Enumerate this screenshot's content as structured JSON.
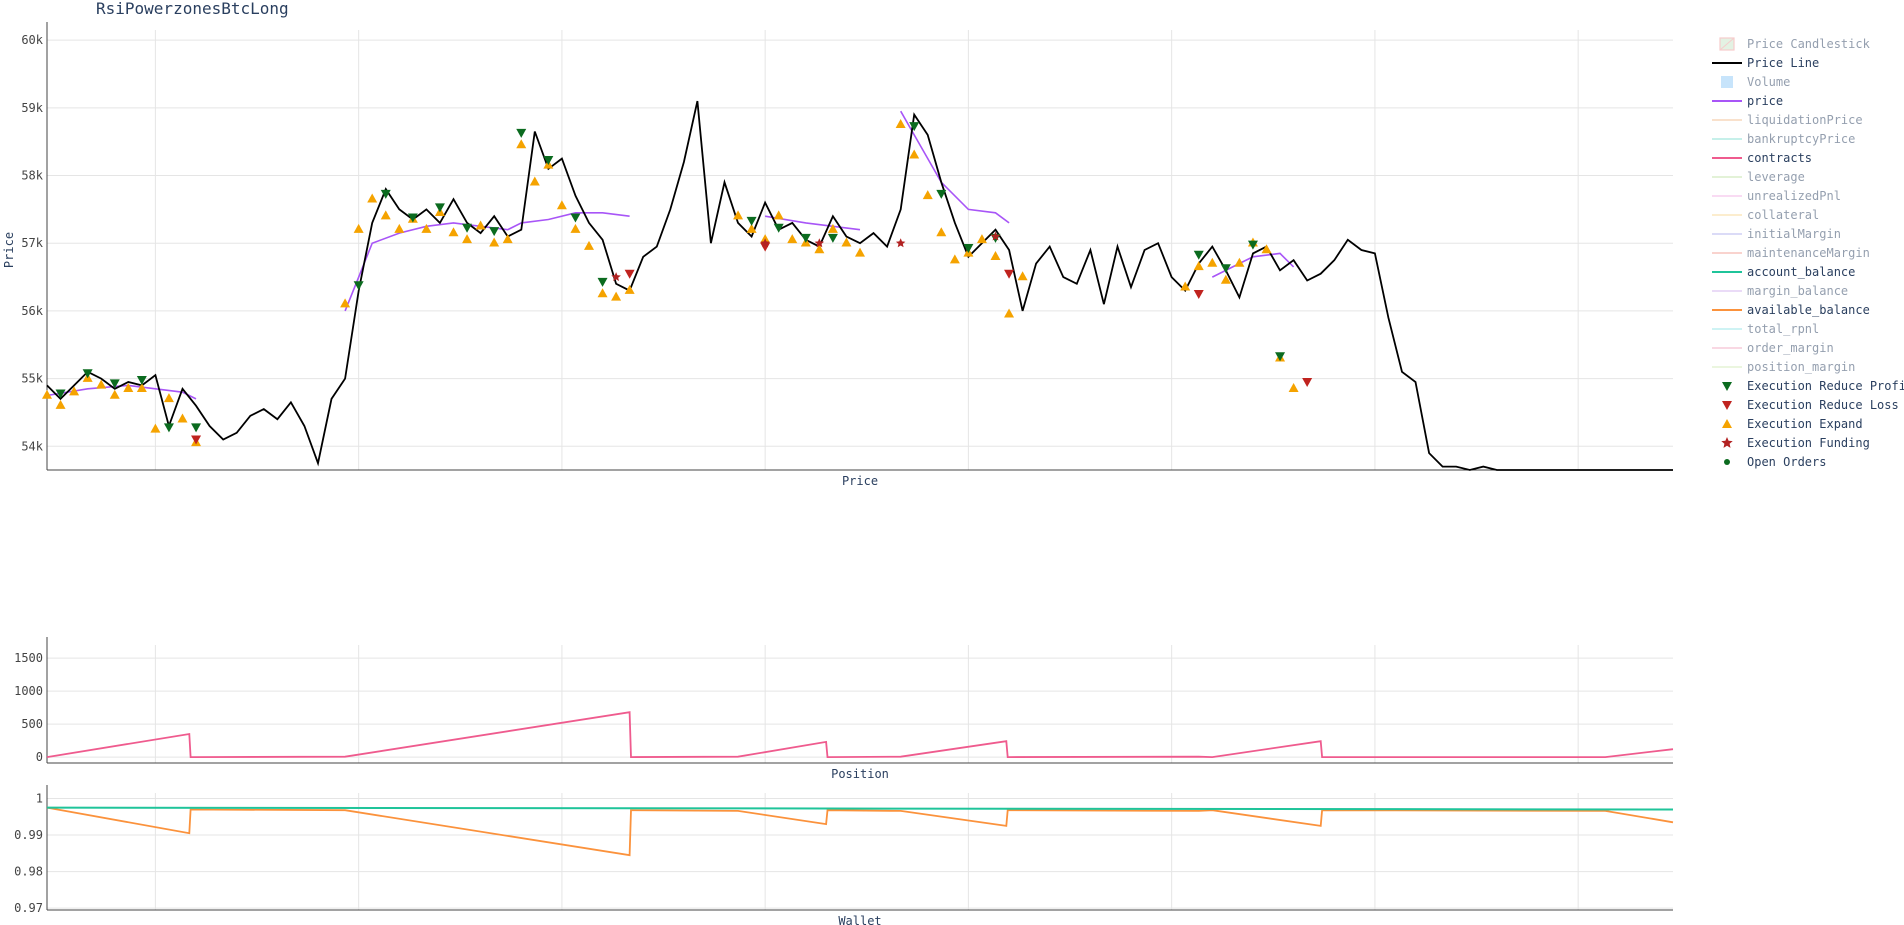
{
  "title": "RsiPowerzonesBtcLong",
  "colors": {
    "price_line": "#000000",
    "price_ma": "#a855f7",
    "contracts": "#ef5b8e",
    "account_balance": "#1fc49a",
    "available_balance": "#fb923c",
    "expand": "#f5a300",
    "reduce_profit": "#0b6b1f",
    "reduce_loss": "#c0231f",
    "funding": "#b22222",
    "open_orders": "#0b6b1f",
    "grid": "#e5e5e5",
    "axis": "#444444"
  },
  "legend": [
    {
      "label": "Price Candlestick",
      "icon": "candlestick-icon",
      "color": "#ef9a9a",
      "active": false
    },
    {
      "label": "Price Line",
      "icon": "line-icon",
      "color": "#000000",
      "active": true
    },
    {
      "label": "Volume",
      "icon": "square-icon",
      "color": "#90caf9",
      "active": false
    },
    {
      "label": "price",
      "icon": "line-icon",
      "color": "#a855f7",
      "active": true
    },
    {
      "label": "liquidationPrice",
      "icon": "line-icon",
      "color": "#f5c59a",
      "active": false
    },
    {
      "label": "bankruptcyPrice",
      "icon": "line-icon",
      "color": "#8fe3d6",
      "active": false
    },
    {
      "label": "contracts",
      "icon": "line-icon",
      "color": "#ef5b8e",
      "active": true
    },
    {
      "label": "leverage",
      "icon": "line-icon",
      "color": "#c8e6b0",
      "active": false
    },
    {
      "label": "unrealizedPnl",
      "icon": "line-icon",
      "color": "#f5b8e8",
      "active": false
    },
    {
      "label": "collateral",
      "icon": "line-icon",
      "color": "#fbdd9e",
      "active": false
    },
    {
      "label": "initialMargin",
      "icon": "line-icon",
      "color": "#b8b8f0",
      "active": false
    },
    {
      "label": "maintenanceMargin",
      "icon": "line-icon",
      "color": "#f5a99e",
      "active": false
    },
    {
      "label": "account_balance",
      "icon": "line-icon",
      "color": "#1fc49a",
      "active": true
    },
    {
      "label": "margin_balance",
      "icon": "line-icon",
      "color": "#d6b8f0",
      "active": false
    },
    {
      "label": "available_balance",
      "icon": "line-icon",
      "color": "#fb923c",
      "active": true
    },
    {
      "label": "total_rpnl",
      "icon": "line-icon",
      "color": "#9ee8ea",
      "active": false
    },
    {
      "label": "order_margin",
      "icon": "line-icon",
      "color": "#f5b3c8",
      "active": false
    },
    {
      "label": "position_margin",
      "icon": "line-icon",
      "color": "#d8eec0",
      "active": false
    },
    {
      "label": "Execution Reduce Profit",
      "icon": "triangle-down-icon",
      "color": "#0b6b1f",
      "active": true
    },
    {
      "label": "Execution Reduce Loss",
      "icon": "triangle-down-icon",
      "color": "#c0231f",
      "active": true
    },
    {
      "label": "Execution Expand",
      "icon": "triangle-up-icon",
      "color": "#f5a300",
      "active": true
    },
    {
      "label": "Execution Funding",
      "icon": "star-icon",
      "color": "#b22222",
      "active": true
    },
    {
      "label": "Open Orders",
      "icon": "dot-icon",
      "color": "#0b6b1f",
      "active": true
    }
  ],
  "chart_data": [
    {
      "type": "line",
      "xlabel": "Price",
      "ylabel": "Price",
      "ylim": [
        53650,
        60150
      ],
      "yticks": [
        54000,
        55000,
        56000,
        57000,
        58000,
        59000,
        60000
      ],
      "ytick_labels": [
        "54k",
        "55k",
        "56k",
        "57k",
        "58k",
        "59k",
        "60k"
      ],
      "x_gridlines": [
        8,
        23,
        38,
        53,
        68,
        83,
        98,
        113
      ],
      "grid": true,
      "series": [
        {
          "name": "Price Line",
          "x": [
            0,
            1,
            2,
            3,
            4,
            5,
            6,
            7,
            8,
            9,
            10,
            11,
            12,
            13,
            14,
            15,
            16,
            17,
            18,
            19,
            20,
            21,
            22,
            23,
            24,
            25,
            26,
            27,
            28,
            29,
            30,
            31,
            32,
            33,
            34,
            35,
            36,
            37,
            38,
            39,
            40,
            41,
            42,
            43,
            44,
            45,
            46,
            47,
            48,
            49,
            50,
            51,
            52,
            53,
            54,
            55,
            56,
            57,
            58,
            59,
            60,
            61,
            62,
            63,
            64,
            65,
            66,
            67,
            68,
            69,
            70,
            71,
            72,
            73,
            74,
            75,
            76,
            77,
            78,
            79,
            80,
            81,
            82,
            83,
            84,
            85,
            86,
            87,
            88,
            89,
            90,
            91,
            92,
            93,
            94,
            95,
            96,
            97,
            98,
            99,
            100,
            101,
            102,
            103,
            104,
            105,
            106,
            107,
            108,
            109,
            110,
            111,
            112,
            113,
            114,
            115,
            116,
            117,
            118,
            119,
            120
          ],
          "values": [
            54900,
            54700,
            54900,
            55100,
            55000,
            54850,
            54950,
            54900,
            55050,
            54300,
            54850,
            54600,
            54300,
            54100,
            54200,
            54450,
            54550,
            54400,
            54650,
            54300,
            53750,
            54700,
            55000,
            56300,
            57300,
            57800,
            57500,
            57350,
            57500,
            57300,
            57650,
            57300,
            57150,
            57400,
            57100,
            57200,
            58650,
            58100,
            58250,
            57700,
            57300,
            57050,
            56400,
            56300,
            56800,
            56950,
            57500,
            58200,
            59100,
            57000,
            57900,
            57300,
            57100,
            57600,
            57200,
            57300,
            57050,
            56950,
            57400,
            57100,
            57000,
            57150,
            56950,
            57500,
            58900,
            58600,
            57900,
            57300,
            56800,
            57000,
            57200,
            56900,
            56000,
            56700,
            56950,
            56500,
            56400,
            56900,
            56100,
            56950,
            56350,
            56900,
            57000,
            56500,
            56300,
            56700,
            56950,
            56600,
            56200,
            56850,
            56950,
            56600,
            56750,
            56450,
            56550,
            56750,
            57050,
            56900,
            56850,
            55900,
            55100,
            54950,
            53900,
            53700,
            53700,
            53600,
            53700,
            53600,
            53650,
            53650,
            53650,
            53650,
            53650,
            53650,
            53650,
            53650,
            53650,
            53650,
            53650,
            53650,
            53650
          ]
        },
        {
          "name": "price",
          "segments": [
            {
              "x": [
                0,
                3,
                6,
                8,
                10,
                11
              ],
              "values": [
                54750,
                54850,
                54900,
                54850,
                54800,
                54700
              ]
            },
            {
              "x": [
                22,
                23,
                24,
                26,
                28,
                30,
                32,
                34,
                35,
                37,
                39,
                41,
                43
              ],
              "values": [
                56000,
                56500,
                57000,
                57150,
                57250,
                57300,
                57250,
                57200,
                57300,
                57350,
                57450,
                57450,
                57400
              ]
            },
            {
              "x": [
                53,
                56,
                58,
                60
              ],
              "values": [
                57400,
                57300,
                57250,
                57200
              ]
            },
            {
              "x": [
                63,
                64,
                66,
                68,
                70,
                71
              ],
              "values": [
                58950,
                58600,
                57900,
                57500,
                57450,
                57300
              ]
            },
            {
              "x": [
                86,
                88,
                89,
                91,
                92
              ],
              "values": [
                56500,
                56700,
                56800,
                56850,
                56650
              ]
            }
          ]
        },
        {
          "name": "Execution Expand",
          "x": [
            0,
            1,
            2,
            3,
            4,
            5,
            6,
            7,
            8,
            9,
            10,
            11,
            22,
            23,
            24,
            25,
            26,
            27,
            28,
            29,
            30,
            31,
            32,
            33,
            34,
            35,
            36,
            37,
            38,
            39,
            40,
            41,
            42,
            43,
            51,
            52,
            53,
            54,
            55,
            56,
            57,
            58,
            59,
            60,
            63,
            64,
            65,
            66,
            67,
            68,
            69,
            70,
            71,
            72,
            84,
            85,
            86,
            87,
            88,
            89,
            90,
            91,
            92
          ],
          "values": [
            54850,
            54700,
            54900,
            55100,
            55000,
            54850,
            54950,
            54950,
            54350,
            54800,
            54500,
            54150,
            56200,
            57300,
            57750,
            57500,
            57300,
            57450,
            57300,
            57550,
            57250,
            57150,
            57350,
            57100,
            57150,
            58550,
            58000,
            58250,
            57650,
            57300,
            57050,
            56350,
            56300,
            56400,
            57500,
            57300,
            57150,
            57500,
            57150,
            57100,
            57000,
            57300,
            57100,
            56950,
            58850,
            58400,
            57800,
            57250,
            56850,
            56950,
            57150,
            56900,
            56050,
            56600,
            56450,
            56750,
            56800,
            56550,
            56800,
            57100,
            57000,
            55400,
            54950
          ]
        },
        {
          "name": "Execution Reduce Profit",
          "x": [
            1,
            3,
            5,
            7,
            9,
            11,
            23,
            25,
            27,
            29,
            31,
            33,
            35,
            37,
            39,
            41,
            52,
            54,
            56,
            58,
            64,
            66,
            68,
            70,
            85,
            87,
            89,
            91
          ],
          "values": [
            54750,
            55050,
            54900,
            54950,
            54250,
            54250,
            56350,
            57700,
            57350,
            57500,
            57200,
            57150,
            58600,
            58200,
            57350,
            56400,
            57300,
            57200,
            57050,
            57050,
            58700,
            57700,
            56900,
            57050,
            56800,
            56600,
            56950,
            55300
          ]
        },
        {
          "name": "Execution Reduce Loss",
          "x": [
            11,
            43,
            53,
            71,
            85,
            93
          ],
          "values": [
            54100,
            56550,
            56950,
            56550,
            56250,
            54950
          ]
        },
        {
          "name": "Execution Funding",
          "x": [
            42,
            53,
            57,
            63,
            70
          ],
          "values": [
            56500,
            57000,
            57000,
            57000,
            57100
          ]
        }
      ]
    },
    {
      "type": "line",
      "xlabel": "Position",
      "ylabel": "",
      "ylim": [
        -90,
        1700
      ],
      "yticks": [
        0,
        500,
        1000,
        1500
      ],
      "grid": true,
      "series": [
        {
          "name": "contracts",
          "x": [
            0,
            10.5,
            10.6,
            22,
            43,
            43.1,
            51,
            57.5,
            57.6,
            63,
            70.8,
            70.9,
            85,
            86,
            94,
            94.1,
            115,
            120
          ],
          "values": [
            0,
            350,
            0,
            5,
            680,
            0,
            5,
            230,
            0,
            5,
            240,
            0,
            5,
            0,
            240,
            0,
            0,
            120
          ]
        }
      ]
    },
    {
      "type": "line",
      "xlabel": "Wallet",
      "ylabel": "",
      "ylim": [
        0.9695,
        1.0015
      ],
      "yticks": [
        0.97,
        0.98,
        0.99,
        1
      ],
      "ytick_labels": [
        "0.97",
        "0.98",
        "0.99",
        "1"
      ],
      "grid": true,
      "series": [
        {
          "name": "account_balance",
          "x": [
            0,
            120
          ],
          "values": [
            0.9975,
            0.997
          ]
        },
        {
          "name": "available_balance",
          "x": [
            0,
            10.5,
            10.6,
            22,
            43,
            43.1,
            51,
            57.5,
            57.6,
            63,
            70.8,
            70.9,
            85,
            86,
            94,
            94.1,
            115,
            120
          ],
          "values": [
            0.9975,
            0.9905,
            0.997,
            0.9968,
            0.9845,
            0.9968,
            0.9966,
            0.993,
            0.9968,
            0.9966,
            0.9925,
            0.9968,
            0.9966,
            0.9968,
            0.9925,
            0.9968,
            0.9966,
            0.9935
          ]
        }
      ]
    }
  ]
}
